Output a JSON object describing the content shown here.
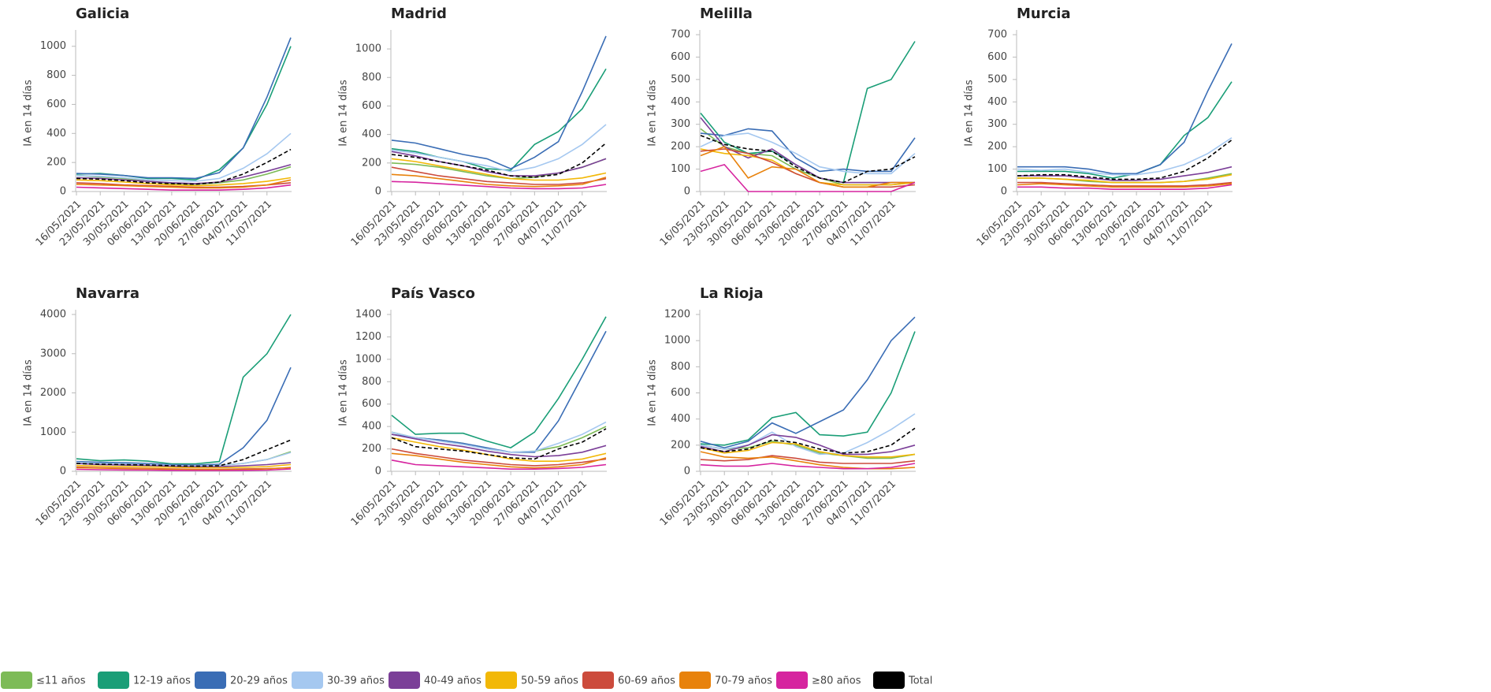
{
  "legend": [
    {
      "label": "≤11 años",
      "color": "#7dbb57"
    },
    {
      "label": "12-19 años",
      "color": "#1a9e77"
    },
    {
      "label": "20-29 años",
      "color": "#3a6db5"
    },
    {
      "label": "30-39 años",
      "color": "#a5c8f0"
    },
    {
      "label": "40-49 años",
      "color": "#7b3f98"
    },
    {
      "label": "50-59 años",
      "color": "#f2b807"
    },
    {
      "label": "60-69 años",
      "color": "#cc4b3c"
    },
    {
      "label": "70-79 años",
      "color": "#e8820c"
    },
    {
      "label": "≥80 años",
      "color": "#d6249f"
    },
    {
      "label": "Total",
      "color": "#000000"
    }
  ],
  "chart_data": [
    {
      "type": "line",
      "title": "Galicia",
      "y_label": "IA en 14 días",
      "x": [
        "16/05/2021",
        "23/05/2021",
        "30/05/2021",
        "06/06/2021",
        "13/06/2021",
        "20/06/2021",
        "27/06/2021",
        "04/07/2021",
        "11/07/2021",
        null
      ],
      "ylim": [
        0,
        1080
      ],
      "yticks": [
        0,
        200,
        400,
        600,
        800,
        1000
      ],
      "series": [
        {
          "values": [
            110,
            100,
            90,
            70,
            55,
            50,
            60,
            80,
            120,
            170
          ]
        },
        {
          "values": [
            120,
            125,
            110,
            90,
            90,
            80,
            150,
            300,
            600,
            1000
          ]
        },
        {
          "values": [
            125,
            120,
            110,
            95,
            95,
            90,
            130,
            300,
            650,
            1060
          ]
        },
        {
          "values": [
            110,
            105,
            95,
            80,
            75,
            70,
            90,
            160,
            260,
            400
          ]
        },
        {
          "values": [
            95,
            90,
            80,
            70,
            60,
            55,
            65,
            100,
            140,
            185
          ]
        },
        {
          "values": [
            80,
            75,
            65,
            55,
            45,
            40,
            45,
            55,
            70,
            95
          ]
        },
        {
          "values": [
            60,
            55,
            45,
            40,
            35,
            30,
            30,
            35,
            45,
            60
          ]
        },
        {
          "values": [
            50,
            45,
            40,
            35,
            30,
            25,
            25,
            30,
            45,
            80
          ]
        },
        {
          "values": [
            30,
            25,
            20,
            15,
            10,
            10,
            10,
            15,
            25,
            45
          ]
        },
        {
          "values": [
            90,
            85,
            75,
            60,
            55,
            50,
            65,
            120,
            200,
            290
          ]
        }
      ]
    },
    {
      "type": "line",
      "title": "Madrid",
      "y_label": "IA en 14 días",
      "x": [
        "16/05/2021",
        "23/05/2021",
        "30/05/2021",
        "06/06/2021",
        "13/06/2021",
        "20/06/2021",
        "27/06/2021",
        "04/07/2021",
        "11/07/2021",
        null
      ],
      "ylim": [
        0,
        1100
      ],
      "yticks": [
        0,
        200,
        400,
        600,
        800,
        1000
      ],
      "series": [
        {
          "values": [
            200,
            190,
            170,
            140,
            110,
            90,
            100,
            130,
            170,
            230
          ]
        },
        {
          "values": [
            300,
            280,
            240,
            210,
            160,
            150,
            330,
            420,
            580,
            860
          ]
        },
        {
          "values": [
            360,
            340,
            300,
            260,
            230,
            160,
            240,
            350,
            700,
            1090
          ]
        },
        {
          "values": [
            290,
            270,
            240,
            210,
            180,
            140,
            170,
            230,
            330,
            470
          ]
        },
        {
          "values": [
            280,
            250,
            210,
            180,
            140,
            110,
            110,
            130,
            170,
            230
          ]
        },
        {
          "values": [
            230,
            210,
            180,
            150,
            120,
            90,
            80,
            80,
            95,
            130
          ]
        },
        {
          "values": [
            170,
            140,
            110,
            90,
            70,
            60,
            50,
            50,
            60,
            90
          ]
        },
        {
          "values": [
            120,
            110,
            90,
            70,
            50,
            40,
            35,
            40,
            50,
            100
          ]
        },
        {
          "values": [
            70,
            65,
            55,
            45,
            35,
            25,
            20,
            20,
            25,
            50
          ]
        },
        {
          "values": [
            260,
            240,
            210,
            180,
            150,
            110,
            100,
            120,
            200,
            340
          ]
        }
      ]
    },
    {
      "type": "line",
      "title": "Melilla",
      "y_label": "IA en 14 días",
      "x": [
        "16/05/2021",
        "23/05/2021",
        "30/05/2021",
        "06/06/2021",
        "13/06/2021",
        "20/06/2021",
        "27/06/2021",
        "04/07/2021",
        "11/07/2021",
        null
      ],
      "ylim": [
        0,
        700
      ],
      "yticks": [
        0,
        100,
        200,
        300,
        400,
        500,
        600,
        700
      ],
      "series": [
        {
          "values": [
            280,
            200,
            170,
            160,
            100,
            60,
            30,
            30,
            30,
            40
          ]
        },
        {
          "values": [
            350,
            220,
            170,
            180,
            120,
            60,
            40,
            460,
            500,
            670
          ]
        },
        {
          "values": [
            260,
            250,
            280,
            270,
            150,
            90,
            100,
            90,
            90,
            240
          ]
        },
        {
          "values": [
            200,
            250,
            260,
            220,
            170,
            110,
            90,
            80,
            80,
            170
          ]
        },
        {
          "values": [
            330,
            200,
            150,
            190,
            120,
            60,
            40,
            40,
            40,
            40
          ]
        },
        {
          "values": [
            190,
            170,
            160,
            140,
            80,
            40,
            30,
            30,
            30,
            40
          ]
        },
        {
          "values": [
            180,
            190,
            170,
            130,
            80,
            40,
            20,
            20,
            20,
            30
          ]
        },
        {
          "values": [
            160,
            200,
            60,
            110,
            100,
            40,
            20,
            20,
            40,
            40
          ]
        },
        {
          "values": [
            90,
            120,
            0,
            0,
            0,
            0,
            0,
            0,
            0,
            40
          ]
        },
        {
          "values": [
            250,
            210,
            190,
            180,
            110,
            60,
            40,
            90,
            100,
            155
          ]
        }
      ]
    },
    {
      "type": "line",
      "title": "Murcia",
      "y_label": "IA en 14 días",
      "x": [
        "16/05/2021",
        "23/05/2021",
        "30/05/2021",
        "06/06/2021",
        "13/06/2021",
        "20/06/2021",
        "27/06/2021",
        "04/07/2021",
        "11/07/2021",
        null
      ],
      "ylim": [
        0,
        700
      ],
      "yticks": [
        0,
        100,
        200,
        300,
        400,
        500,
        600,
        700
      ],
      "series": [
        {
          "values": [
            60,
            60,
            55,
            45,
            40,
            40,
            40,
            45,
            60,
            80
          ]
        },
        {
          "values": [
            90,
            90,
            90,
            80,
            60,
            80,
            120,
            250,
            330,
            490
          ]
        },
        {
          "values": [
            110,
            110,
            110,
            100,
            80,
            80,
            120,
            220,
            450,
            660
          ]
        },
        {
          "values": [
            100,
            95,
            100,
            85,
            75,
            75,
            90,
            120,
            170,
            240
          ]
        },
        {
          "values": [
            70,
            70,
            70,
            60,
            50,
            50,
            55,
            70,
            85,
            110
          ]
        },
        {
          "values": [
            60,
            60,
            55,
            50,
            40,
            40,
            40,
            45,
            55,
            75
          ]
        },
        {
          "values": [
            40,
            40,
            35,
            30,
            25,
            25,
            25,
            25,
            30,
            40
          ]
        },
        {
          "values": [
            30,
            35,
            30,
            25,
            20,
            20,
            20,
            20,
            25,
            35
          ]
        },
        {
          "values": [
            20,
            20,
            15,
            15,
            10,
            10,
            10,
            10,
            15,
            30
          ]
        },
        {
          "values": [
            70,
            75,
            75,
            65,
            55,
            55,
            60,
            90,
            150,
            230
          ]
        }
      ]
    },
    {
      "type": "line",
      "title": "Navarra",
      "y_label": "IA en 14 días",
      "x": [
        "16/05/2021",
        "23/05/2021",
        "30/05/2021",
        "06/06/2021",
        "13/06/2021",
        "20/06/2021",
        "27/06/2021",
        "04/07/2021",
        "11/07/2021",
        null
      ],
      "ylim": [
        0,
        4000
      ],
      "yticks": [
        0,
        1000,
        2000,
        3000,
        4000
      ],
      "series": [
        {
          "values": [
            200,
            180,
            160,
            150,
            140,
            130,
            150,
            200,
            300,
            500
          ]
        },
        {
          "values": [
            320,
            270,
            290,
            260,
            190,
            190,
            250,
            2400,
            3000,
            4000
          ]
        },
        {
          "values": [
            250,
            230,
            220,
            200,
            170,
            160,
            180,
            600,
            1300,
            2650
          ]
        },
        {
          "values": [
            230,
            200,
            190,
            170,
            150,
            140,
            150,
            200,
            300,
            480
          ]
        },
        {
          "values": [
            200,
            170,
            160,
            150,
            130,
            120,
            120,
            140,
            170,
            220
          ]
        },
        {
          "values": [
            150,
            130,
            120,
            110,
            100,
            90,
            90,
            100,
            120,
            170
          ]
        },
        {
          "values": [
            110,
            90,
            80,
            70,
            60,
            50,
            50,
            60,
            70,
            90
          ]
        },
        {
          "values": [
            90,
            80,
            70,
            60,
            50,
            40,
            40,
            40,
            60,
            100
          ]
        },
        {
          "values": [
            50,
            40,
            35,
            30,
            25,
            20,
            20,
            25,
            30,
            60
          ]
        },
        {
          "values": [
            200,
            180,
            170,
            160,
            140,
            130,
            140,
            300,
            550,
            800
          ]
        }
      ]
    },
    {
      "type": "line",
      "title": "País Vasco",
      "y_label": "IA en 14 días",
      "x": [
        "16/05/2021",
        "23/05/2021",
        "30/05/2021",
        "06/06/2021",
        "13/06/2021",
        "20/06/2021",
        "27/06/2021",
        "04/07/2021",
        "11/07/2021",
        null
      ],
      "ylim": [
        0,
        1400
      ],
      "yticks": [
        0,
        200,
        400,
        600,
        800,
        1000,
        1200,
        1400
      ],
      "series": [
        {
          "values": [
            350,
            300,
            280,
            250,
            200,
            170,
            180,
            220,
            300,
            400
          ]
        },
        {
          "values": [
            500,
            330,
            340,
            340,
            270,
            210,
            350,
            650,
            1000,
            1380
          ]
        },
        {
          "values": [
            330,
            300,
            280,
            250,
            210,
            170,
            170,
            450,
            850,
            1250
          ]
        },
        {
          "values": [
            350,
            300,
            270,
            240,
            200,
            170,
            180,
            250,
            330,
            440
          ]
        },
        {
          "values": [
            330,
            290,
            250,
            220,
            180,
            150,
            130,
            140,
            170,
            230
          ]
        },
        {
          "values": [
            300,
            260,
            220,
            190,
            150,
            110,
            90,
            90,
            110,
            160
          ]
        },
        {
          "values": [
            200,
            160,
            130,
            100,
            80,
            60,
            50,
            60,
            80,
            110
          ]
        },
        {
          "values": [
            160,
            140,
            110,
            80,
            60,
            40,
            30,
            40,
            60,
            120
          ]
        },
        {
          "values": [
            100,
            60,
            50,
            40,
            30,
            20,
            20,
            25,
            35,
            60
          ]
        },
        {
          "values": [
            300,
            220,
            200,
            180,
            150,
            120,
            110,
            200,
            260,
            380
          ]
        }
      ]
    },
    {
      "type": "line",
      "title": "La Rioja",
      "y_label": "IA en 14 días",
      "x": [
        "16/05/2021",
        "23/05/2021",
        "30/05/2021",
        "06/06/2021",
        "13/06/2021",
        "20/06/2021",
        "27/06/2021",
        "04/07/2021",
        "11/07/2021",
        null
      ],
      "ylim": [
        0,
        1200
      ],
      "yticks": [
        0,
        200,
        400,
        600,
        800,
        1000,
        1200
      ],
      "series": [
        {
          "values": [
            200,
            170,
            180,
            230,
            200,
            140,
            120,
            100,
            100,
            130
          ]
        },
        {
          "values": [
            210,
            200,
            240,
            410,
            450,
            280,
            270,
            300,
            600,
            1070
          ]
        },
        {
          "values": [
            230,
            180,
            230,
            370,
            290,
            380,
            470,
            700,
            1000,
            1180
          ]
        },
        {
          "values": [
            200,
            170,
            200,
            300,
            190,
            130,
            140,
            220,
            320,
            440
          ]
        },
        {
          "values": [
            190,
            150,
            200,
            280,
            260,
            200,
            130,
            130,
            150,
            200
          ]
        },
        {
          "values": [
            180,
            140,
            160,
            220,
            210,
            150,
            120,
            110,
            110,
            130
          ]
        },
        {
          "values": [
            90,
            80,
            90,
            120,
            100,
            70,
            60,
            60,
            60,
            80
          ]
        },
        {
          "values": [
            150,
            110,
            100,
            110,
            80,
            50,
            30,
            20,
            20,
            30
          ]
        },
        {
          "values": [
            50,
            40,
            40,
            60,
            40,
            30,
            20,
            20,
            30,
            60
          ]
        },
        {
          "values": [
            180,
            150,
            170,
            240,
            220,
            170,
            140,
            150,
            200,
            330
          ]
        }
      ]
    }
  ]
}
